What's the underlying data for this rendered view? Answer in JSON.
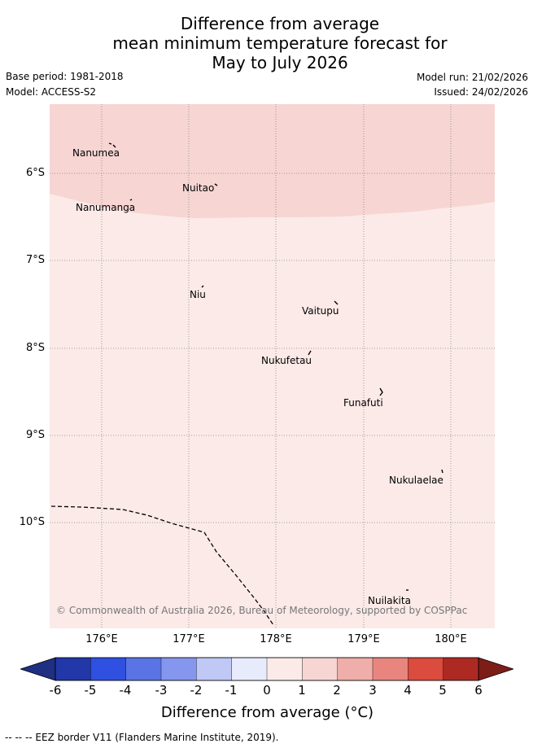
{
  "title": {
    "line1": "Difference from average",
    "line2": "mean minimum temperature forecast for",
    "line3": "May to July 2026"
  },
  "meta": {
    "base_period": "Base period: 1981-2018",
    "model": "Model: ACCESS-S2",
    "model_run": "Model run: 21/02/2026",
    "issued": "Issued: 24/02/2026"
  },
  "map": {
    "lat_labels": [
      "6°S",
      "7°S",
      "8°S",
      "9°S",
      "10°S"
    ],
    "lon_labels": [
      "176°E",
      "177°E",
      "178°E",
      "179°E",
      "180°E"
    ],
    "places": [
      {
        "name": "Nanumea"
      },
      {
        "name": "Nuitao"
      },
      {
        "name": "Nanumanga"
      },
      {
        "name": "Niu"
      },
      {
        "name": "Vaitupu"
      },
      {
        "name": "Nukufetau"
      },
      {
        "name": "Funafuti"
      },
      {
        "name": "Nukulaelae"
      },
      {
        "name": "Nuilakita"
      }
    ],
    "copyright": "© Commonwealth of Australia 2026, Bureau of Meteorology, supported by COSPPac",
    "fill_colors": {
      "band_1_2": "#f6d5d3",
      "band_0_1": "#fbeae8"
    }
  },
  "colorbar": {
    "title": "Difference from average (°C)",
    "ticks": [
      "-6",
      "-5",
      "-4",
      "-3",
      "-2",
      "-1",
      "0",
      "1",
      "2",
      "3",
      "4",
      "5",
      "6"
    ],
    "colors": [
      "#2237a8",
      "#2f50e0",
      "#5a74e6",
      "#8496ee",
      "#c0c8f6",
      "#e8ebfc",
      "#fbeae8",
      "#f6d5d3",
      "#efaea9",
      "#e8857e",
      "#db4b3e",
      "#ad2a23"
    ],
    "under_color": "#1f2f82",
    "over_color": "#7c1d18"
  },
  "footer": "-- -- -- EEZ border V11 (Flanders Marine Institute, 2019)."
}
